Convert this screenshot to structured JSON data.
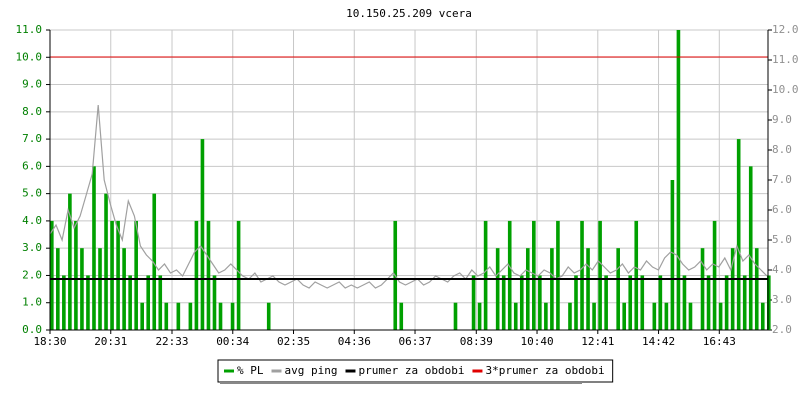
{
  "chart_data": {
    "type": "bar-line",
    "title": "10.150.25.209 vcera",
    "x": [
      0,
      12,
      24,
      36,
      48,
      60,
      72,
      84,
      96,
      108,
      120,
      132,
      144,
      156,
      168,
      180,
      192,
      204,
      216,
      228,
      240,
      252,
      264,
      276,
      288,
      300,
      312,
      324,
      336,
      348,
      360,
      372,
      384,
      396,
      408,
      420,
      432,
      444,
      456,
      468,
      480,
      492,
      504,
      516,
      528,
      540,
      552,
      564,
      576,
      588,
      600,
      612,
      624,
      636,
      648,
      660,
      672,
      684,
      696,
      708,
      720,
      732,
      744,
      756,
      768,
      780,
      792,
      804,
      816,
      828,
      840,
      852,
      864,
      876,
      888,
      900,
      912,
      924,
      936,
      948,
      960,
      972,
      984,
      996,
      1008,
      1020,
      1032,
      1044,
      1056,
      1068,
      1080,
      1092,
      1104,
      1116,
      1128,
      1140,
      1152,
      1164,
      1176,
      1188,
      1200,
      1212,
      1224,
      1236,
      1248,
      1260,
      1272,
      1284,
      1296,
      1308,
      1320,
      1332,
      1344,
      1356,
      1368,
      1380,
      1392,
      1404,
      1416,
      1428
    ],
    "xlim": [
      0,
      1430
    ],
    "xticks": [
      {
        "value": 0,
        "label": "18:30"
      },
      {
        "value": 121,
        "label": "20:31"
      },
      {
        "value": 243,
        "label": "22:33"
      },
      {
        "value": 364,
        "label": "00:34"
      },
      {
        "value": 485,
        "label": "02:35"
      },
      {
        "value": 606,
        "label": "04:36"
      },
      {
        "value": 727,
        "label": "06:37"
      },
      {
        "value": 849,
        "label": "08:39"
      },
      {
        "value": 970,
        "label": "10:40"
      },
      {
        "value": 1091,
        "label": "12:41"
      },
      {
        "value": 1212,
        "label": "14:42"
      },
      {
        "value": 1333,
        "label": "16:43"
      }
    ],
    "ylim": [
      0,
      11
    ],
    "yticks": [
      {
        "value": 0,
        "label": "0.0"
      },
      {
        "value": 1,
        "label": "1.0"
      },
      {
        "value": 2,
        "label": "2.0"
      },
      {
        "value": 3,
        "label": "3.0"
      },
      {
        "value": 4,
        "label": "4.0"
      },
      {
        "value": 5,
        "label": "5.0"
      },
      {
        "value": 6,
        "label": "6.0"
      },
      {
        "value": 7,
        "label": "7.0"
      },
      {
        "value": 8,
        "label": "8.0"
      },
      {
        "value": 9,
        "label": "9.0"
      },
      {
        "value": 10,
        "label": "10.0"
      },
      {
        "value": 11,
        "label": "11.0"
      }
    ],
    "y2lim": [
      2,
      12
    ],
    "y2ticks": [
      {
        "value": 2,
        "label": "2.0"
      },
      {
        "value": 3,
        "label": "3.0"
      },
      {
        "value": 4,
        "label": "4.0"
      },
      {
        "value": 5,
        "label": "5.0"
      },
      {
        "value": 6,
        "label": "6.0"
      },
      {
        "value": 7,
        "label": "7.0"
      },
      {
        "value": 8,
        "label": "8.0"
      },
      {
        "value": 9,
        "label": "9.0"
      },
      {
        "value": 10,
        "label": "10.0"
      },
      {
        "value": 11,
        "label": "11.0"
      },
      {
        "value": 12,
        "label": "12.0"
      }
    ],
    "grid": true,
    "series": [
      {
        "name": "% PL",
        "color": "#00a000",
        "kind": "bar",
        "values": [
          4,
          3,
          2,
          5,
          4,
          3,
          2,
          6,
          3,
          5,
          4,
          4,
          3,
          2,
          4,
          1,
          2,
          5,
          2,
          1,
          0,
          1,
          0,
          1,
          4,
          7,
          4,
          2,
          1,
          0,
          1,
          4,
          0,
          0,
          0,
          0,
          1,
          0,
          0,
          0,
          0,
          0,
          0,
          0,
          0,
          0,
          0,
          0,
          0,
          0,
          0,
          0,
          0,
          0,
          0,
          0,
          0,
          4,
          1,
          0,
          0,
          0,
          0,
          0,
          0,
          0,
          0,
          1,
          0,
          0,
          2,
          1,
          4,
          0,
          3,
          2,
          4,
          1,
          2,
          3,
          4,
          2,
          1,
          3,
          4,
          0,
          1,
          2,
          4,
          3,
          1,
          4,
          2,
          0,
          3,
          1,
          2,
          4,
          2,
          0,
          1,
          2,
          1,
          5.5,
          11,
          2,
          1,
          0,
          3,
          2,
          4,
          1,
          2,
          3,
          7,
          2,
          6,
          3,
          1,
          2
        ]
      },
      {
        "name": "avg ping",
        "color": "#a0a0a0",
        "kind": "line",
        "axis": "y2",
        "values": [
          5.2,
          5.5,
          5.0,
          6.0,
          5.4,
          5.8,
          6.5,
          7.2,
          9.5,
          7.0,
          6.2,
          5.5,
          5.0,
          6.3,
          5.8,
          4.8,
          4.5,
          4.3,
          4.0,
          4.2,
          3.9,
          4.0,
          3.8,
          4.2,
          4.6,
          4.8,
          4.5,
          4.2,
          3.9,
          4.0,
          4.2,
          4.0,
          3.8,
          3.7,
          3.9,
          3.6,
          3.7,
          3.8,
          3.6,
          3.5,
          3.6,
          3.7,
          3.5,
          3.4,
          3.6,
          3.5,
          3.4,
          3.5,
          3.6,
          3.4,
          3.5,
          3.4,
          3.5,
          3.6,
          3.4,
          3.5,
          3.7,
          3.9,
          3.6,
          3.5,
          3.6,
          3.7,
          3.5,
          3.6,
          3.8,
          3.7,
          3.6,
          3.8,
          3.9,
          3.7,
          4.0,
          3.8,
          3.9,
          4.1,
          3.8,
          4.0,
          4.2,
          3.9,
          3.8,
          4.0,
          3.9,
          3.8,
          4.0,
          3.9,
          3.7,
          3.8,
          4.1,
          3.9,
          4.0,
          4.2,
          4.0,
          4.3,
          4.1,
          3.9,
          4.0,
          4.2,
          3.9,
          4.1,
          4.0,
          4.3,
          4.1,
          4.0,
          4.4,
          4.6,
          4.5,
          4.2,
          4.0,
          4.1,
          4.3,
          4.0,
          4.2,
          4.1,
          4.4,
          4.0,
          4.8,
          4.3,
          4.5,
          4.2,
          4.0,
          3.8
        ]
      }
    ],
    "reference_lines": [
      {
        "name": "prumer za obdobi",
        "color": "#000000",
        "axis": "y2",
        "value": 3.7
      },
      {
        "name": "3*prumer za obdobi",
        "color": "#e00000",
        "axis": "y2",
        "value": 11.1
      }
    ]
  }
}
